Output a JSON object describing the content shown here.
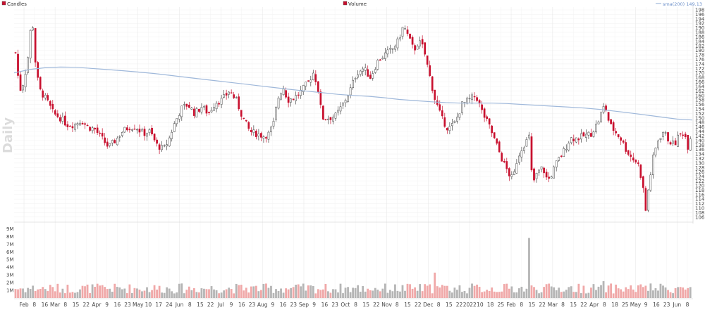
{
  "chart_data": {
    "type": "candlestick",
    "period_label": "Daily",
    "legend": {
      "candles": "Candles",
      "volume": "Volume",
      "sma": "sma(200) 149.13"
    },
    "colors": {
      "up_fill": "#ffffff",
      "up_stroke": "#444444",
      "down": "#c8102e",
      "sma": "#9fb8da",
      "vol_up": "#b5b5b5",
      "vol_down": "#f0a8a8",
      "grid": "#eeeeee"
    },
    "price_axis": {
      "min": 105,
      "max": 198,
      "step": 2,
      "tick_labels": [
        "106",
        "108",
        "110",
        "112",
        "114",
        "116",
        "118",
        "120",
        "122",
        "124",
        "126",
        "128",
        "130",
        "132",
        "134",
        "136",
        "138",
        "140",
        "142",
        "144",
        "146",
        "148",
        "150",
        "152",
        "154",
        "156",
        "158",
        "160",
        "162",
        "164",
        "166",
        "168",
        "170",
        "172",
        "174",
        "176",
        "178",
        "180",
        "182",
        "184",
        "186",
        "188",
        "190",
        "192",
        "194",
        "196",
        "198"
      ]
    },
    "volume_axis": {
      "max": 9.4,
      "tick_labels": [
        "1M",
        "2M",
        "3M",
        "4M",
        "5M",
        "6M",
        "7M",
        "8M",
        "9M"
      ]
    },
    "x_tick_labels": [
      "Feb",
      "8",
      "16",
      "Mar",
      "8",
      "15",
      "22",
      "Apr",
      "9",
      "16",
      "23",
      "May",
      "10",
      "17",
      "24",
      "Jun",
      "8",
      "15",
      "22",
      "Jul",
      "9",
      "16",
      "23",
      "Aug",
      "9",
      "16",
      "23",
      "Sep",
      "9",
      "16",
      "23",
      "Oct",
      "8",
      "15",
      "22",
      "Nov",
      "8",
      "15",
      "22",
      "Dec",
      "8",
      "15",
      "22",
      "2022",
      "10",
      "18",
      "25",
      "Feb",
      "8",
      "15",
      "22",
      "Mar",
      "8",
      "15",
      "22",
      "Apr",
      "8",
      "18",
      "25",
      "May",
      "9",
      "16",
      "23",
      "Jun",
      "8"
    ],
    "sma_values": [
      170,
      171.5,
      172.3,
      172.6,
      172.5,
      172.0,
      171.5,
      171.0,
      170.4,
      169.8,
      169.0,
      168.2,
      167.4,
      166.6,
      165.8,
      165.0,
      164.2,
      163.4,
      162.6,
      161.9,
      161.2,
      160.5,
      160.0,
      159.6,
      159.0,
      158.2,
      157.7,
      157.2,
      156.8,
      156.6,
      156.6,
      156.6,
      156.4,
      156.0,
      155.6,
      155.2,
      154.8,
      154.4,
      153.8,
      153.0,
      152.2,
      151.3,
      150.4,
      149.5,
      149.1
    ],
    "price_path": [
      [
        0,
        179
      ],
      [
        6,
        162
      ],
      [
        12,
        166
      ],
      [
        18,
        177
      ],
      [
        24,
        196
      ],
      [
        30,
        170
      ],
      [
        36,
        162
      ],
      [
        45,
        158
      ],
      [
        55,
        152
      ],
      [
        65,
        150
      ],
      [
        75,
        147
      ],
      [
        85,
        147
      ],
      [
        95,
        149
      ],
      [
        105,
        146
      ],
      [
        115,
        145
      ],
      [
        125,
        141
      ],
      [
        135,
        137
      ],
      [
        145,
        140
      ],
      [
        155,
        144
      ],
      [
        165,
        146
      ],
      [
        175,
        146
      ],
      [
        185,
        143
      ],
      [
        195,
        144
      ],
      [
        205,
        138
      ],
      [
        215,
        136
      ],
      [
        222,
        140
      ],
      [
        230,
        147
      ],
      [
        240,
        154
      ],
      [
        250,
        156
      ],
      [
        260,
        152
      ],
      [
        270,
        155
      ],
      [
        280,
        152
      ],
      [
        290,
        157
      ],
      [
        300,
        158
      ],
      [
        310,
        162
      ],
      [
        320,
        158
      ],
      [
        330,
        150
      ],
      [
        340,
        144
      ],
      [
        350,
        143
      ],
      [
        360,
        142
      ],
      [
        368,
        143
      ],
      [
        375,
        148
      ],
      [
        380,
        158
      ],
      [
        388,
        164
      ],
      [
        395,
        158
      ],
      [
        405,
        159
      ],
      [
        415,
        162
      ],
      [
        425,
        166
      ],
      [
        432,
        170
      ],
      [
        438,
        165
      ],
      [
        445,
        150
      ],
      [
        455,
        150
      ],
      [
        465,
        151
      ],
      [
        475,
        156
      ],
      [
        485,
        162
      ],
      [
        495,
        170
      ],
      [
        505,
        172
      ],
      [
        515,
        168
      ],
      [
        525,
        175
      ],
      [
        535,
        178
      ],
      [
        545,
        180
      ],
      [
        555,
        184
      ],
      [
        563,
        191
      ],
      [
        570,
        186
      ],
      [
        578,
        180
      ],
      [
        585,
        184
      ],
      [
        592,
        181
      ],
      [
        600,
        170
      ],
      [
        608,
        159
      ],
      [
        618,
        150
      ],
      [
        628,
        145
      ],
      [
        638,
        148
      ],
      [
        648,
        156
      ],
      [
        658,
        158
      ],
      [
        668,
        160
      ],
      [
        678,
        152
      ],
      [
        688,
        146
      ],
      [
        698,
        138
      ],
      [
        708,
        130
      ],
      [
        718,
        124
      ],
      [
        722,
        123
      ],
      [
        728,
        132
      ],
      [
        735,
        137
      ],
      [
        742,
        140
      ],
      [
        746,
        142
      ],
      [
        748,
        127
      ],
      [
        752,
        122
      ],
      [
        758,
        126
      ],
      [
        765,
        128
      ],
      [
        772,
        122
      ],
      [
        778,
        125
      ],
      [
        785,
        130
      ],
      [
        795,
        135
      ],
      [
        805,
        141
      ],
      [
        815,
        141
      ],
      [
        825,
        142
      ],
      [
        835,
        143
      ],
      [
        845,
        148
      ],
      [
        855,
        156
      ],
      [
        862,
        147
      ],
      [
        870,
        144
      ],
      [
        878,
        141
      ],
      [
        886,
        136
      ],
      [
        895,
        132
      ],
      [
        903,
        130
      ],
      [
        910,
        121
      ],
      [
        914,
        108
      ],
      [
        918,
        118
      ],
      [
        925,
        132
      ],
      [
        932,
        140
      ],
      [
        940,
        144
      ],
      [
        948,
        140
      ],
      [
        956,
        138
      ],
      [
        962,
        142
      ],
      [
        970,
        144
      ],
      [
        976,
        137
      ],
      [
        980,
        143
      ]
    ],
    "volume_spikes": [
      [
        608,
        3.3
      ],
      [
        746,
        7.8
      ],
      [
        855,
        2.2
      ],
      [
        914,
        1.6
      ]
    ]
  }
}
